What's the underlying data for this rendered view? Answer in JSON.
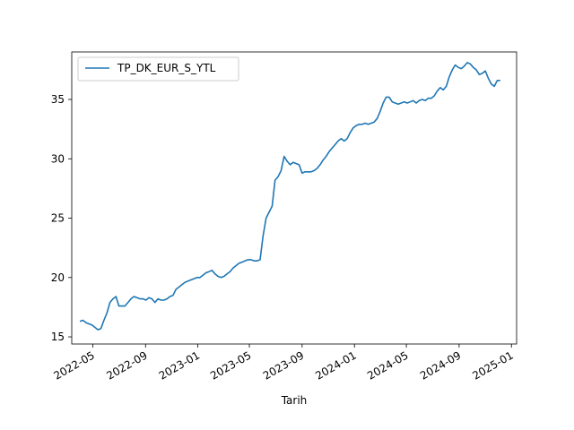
{
  "chart_data": {
    "type": "line",
    "title": "",
    "xlabel": "Tarih",
    "ylabel": "",
    "x_tick_labels": [
      "2022-05",
      "2022-09",
      "2023-01",
      "2023-05",
      "2023-09",
      "2024-01",
      "2024-05",
      "2024-09",
      "2025-01"
    ],
    "x_tick_dates": [
      "2022-05-01",
      "2022-09-01",
      "2023-01-01",
      "2023-05-01",
      "2023-09-01",
      "2024-01-01",
      "2024-05-01",
      "2024-09-01",
      "2025-01-01"
    ],
    "y_ticks": [
      15,
      20,
      25,
      30,
      35
    ],
    "xlim": [
      "2022-03-13",
      "2025-01-13"
    ],
    "ylim": [
      14.4,
      39.0
    ],
    "legend": {
      "location": "upper-left"
    },
    "colors": {
      "series": "#1f77b4"
    },
    "series": [
      {
        "name": "TP_DK_EUR_S_YTL",
        "points": [
          [
            "2022-04-01",
            16.3
          ],
          [
            "2022-04-08",
            16.4
          ],
          [
            "2022-04-15",
            16.2
          ],
          [
            "2022-04-22",
            16.1
          ],
          [
            "2022-04-29",
            16.0
          ],
          [
            "2022-05-06",
            15.8
          ],
          [
            "2022-05-13",
            15.6
          ],
          [
            "2022-05-20",
            15.7
          ],
          [
            "2022-05-27",
            16.4
          ],
          [
            "2022-06-03",
            17.0
          ],
          [
            "2022-06-10",
            17.9
          ],
          [
            "2022-06-17",
            18.2
          ],
          [
            "2022-06-24",
            18.4
          ],
          [
            "2022-07-01",
            17.6
          ],
          [
            "2022-07-08",
            17.6
          ],
          [
            "2022-07-15",
            17.6
          ],
          [
            "2022-07-22",
            17.9
          ],
          [
            "2022-07-29",
            18.2
          ],
          [
            "2022-08-05",
            18.4
          ],
          [
            "2022-08-12",
            18.3
          ],
          [
            "2022-08-19",
            18.2
          ],
          [
            "2022-08-26",
            18.2
          ],
          [
            "2022-09-02",
            18.1
          ],
          [
            "2022-09-09",
            18.3
          ],
          [
            "2022-09-16",
            18.2
          ],
          [
            "2022-09-23",
            17.9
          ],
          [
            "2022-09-30",
            18.2
          ],
          [
            "2022-10-07",
            18.1
          ],
          [
            "2022-10-14",
            18.1
          ],
          [
            "2022-10-21",
            18.2
          ],
          [
            "2022-10-28",
            18.4
          ],
          [
            "2022-11-04",
            18.5
          ],
          [
            "2022-11-11",
            19.0
          ],
          [
            "2022-11-18",
            19.2
          ],
          [
            "2022-11-25",
            19.4
          ],
          [
            "2022-12-02",
            19.6
          ],
          [
            "2022-12-09",
            19.7
          ],
          [
            "2022-12-16",
            19.8
          ],
          [
            "2022-12-23",
            19.9
          ],
          [
            "2022-12-30",
            20.0
          ],
          [
            "2023-01-06",
            20.0
          ],
          [
            "2023-01-13",
            20.2
          ],
          [
            "2023-01-20",
            20.4
          ],
          [
            "2023-01-27",
            20.5
          ],
          [
            "2023-02-03",
            20.6
          ],
          [
            "2023-02-10",
            20.3
          ],
          [
            "2023-02-17",
            20.1
          ],
          [
            "2023-02-24",
            20.0
          ],
          [
            "2023-03-03",
            20.1
          ],
          [
            "2023-03-10",
            20.3
          ],
          [
            "2023-03-17",
            20.5
          ],
          [
            "2023-03-24",
            20.8
          ],
          [
            "2023-03-31",
            21.0
          ],
          [
            "2023-04-07",
            21.2
          ],
          [
            "2023-04-14",
            21.3
          ],
          [
            "2023-04-21",
            21.4
          ],
          [
            "2023-04-28",
            21.5
          ],
          [
            "2023-05-05",
            21.5
          ],
          [
            "2023-05-12",
            21.4
          ],
          [
            "2023-05-19",
            21.4
          ],
          [
            "2023-05-26",
            21.5
          ],
          [
            "2023-06-02",
            23.5
          ],
          [
            "2023-06-09",
            25.0
          ],
          [
            "2023-06-16",
            25.5
          ],
          [
            "2023-06-23",
            26.0
          ],
          [
            "2023-06-30",
            28.2
          ],
          [
            "2023-07-07",
            28.5
          ],
          [
            "2023-07-14",
            29.0
          ],
          [
            "2023-07-21",
            30.2
          ],
          [
            "2023-07-28",
            29.8
          ],
          [
            "2023-08-04",
            29.5
          ],
          [
            "2023-08-11",
            29.7
          ],
          [
            "2023-08-18",
            29.6
          ],
          [
            "2023-08-25",
            29.5
          ],
          [
            "2023-09-01",
            28.8
          ],
          [
            "2023-09-08",
            28.9
          ],
          [
            "2023-09-15",
            28.9
          ],
          [
            "2023-09-22",
            28.9
          ],
          [
            "2023-09-29",
            29.0
          ],
          [
            "2023-10-06",
            29.2
          ],
          [
            "2023-10-13",
            29.5
          ],
          [
            "2023-10-20",
            29.9
          ],
          [
            "2023-10-27",
            30.2
          ],
          [
            "2023-11-03",
            30.6
          ],
          [
            "2023-11-10",
            30.9
          ],
          [
            "2023-11-17",
            31.2
          ],
          [
            "2023-11-24",
            31.5
          ],
          [
            "2023-12-01",
            31.7
          ],
          [
            "2023-12-08",
            31.5
          ],
          [
            "2023-12-15",
            31.7
          ],
          [
            "2023-12-22",
            32.2
          ],
          [
            "2023-12-29",
            32.6
          ],
          [
            "2024-01-05",
            32.8
          ],
          [
            "2024-01-12",
            32.9
          ],
          [
            "2024-01-19",
            32.9
          ],
          [
            "2024-01-26",
            33.0
          ],
          [
            "2024-02-02",
            32.9
          ],
          [
            "2024-02-09",
            33.0
          ],
          [
            "2024-02-16",
            33.1
          ],
          [
            "2024-02-23",
            33.4
          ],
          [
            "2024-03-01",
            34.0
          ],
          [
            "2024-03-08",
            34.7
          ],
          [
            "2024-03-15",
            35.2
          ],
          [
            "2024-03-22",
            35.2
          ],
          [
            "2024-03-29",
            34.8
          ],
          [
            "2024-04-05",
            34.7
          ],
          [
            "2024-04-12",
            34.6
          ],
          [
            "2024-04-19",
            34.7
          ],
          [
            "2024-04-26",
            34.8
          ],
          [
            "2024-05-03",
            34.7
          ],
          [
            "2024-05-10",
            34.8
          ],
          [
            "2024-05-17",
            34.9
          ],
          [
            "2024-05-24",
            34.7
          ],
          [
            "2024-05-31",
            34.9
          ],
          [
            "2024-06-07",
            35.0
          ],
          [
            "2024-06-14",
            34.9
          ],
          [
            "2024-06-21",
            35.1
          ],
          [
            "2024-06-28",
            35.1
          ],
          [
            "2024-07-05",
            35.3
          ],
          [
            "2024-07-12",
            35.7
          ],
          [
            "2024-07-19",
            36.0
          ],
          [
            "2024-07-26",
            35.8
          ],
          [
            "2024-08-02",
            36.1
          ],
          [
            "2024-08-09",
            36.9
          ],
          [
            "2024-08-16",
            37.5
          ],
          [
            "2024-08-23",
            37.9
          ],
          [
            "2024-08-30",
            37.7
          ],
          [
            "2024-09-06",
            37.6
          ],
          [
            "2024-09-13",
            37.8
          ],
          [
            "2024-09-20",
            38.1
          ],
          [
            "2024-09-27",
            38.0
          ],
          [
            "2024-10-04",
            37.7
          ],
          [
            "2024-10-11",
            37.5
          ],
          [
            "2024-10-18",
            37.1
          ],
          [
            "2024-10-25",
            37.2
          ],
          [
            "2024-11-01",
            37.4
          ],
          [
            "2024-11-08",
            36.8
          ],
          [
            "2024-11-15",
            36.3
          ],
          [
            "2024-11-22",
            36.1
          ],
          [
            "2024-11-29",
            36.6
          ],
          [
            "2024-12-06",
            36.6
          ]
        ]
      }
    ]
  }
}
